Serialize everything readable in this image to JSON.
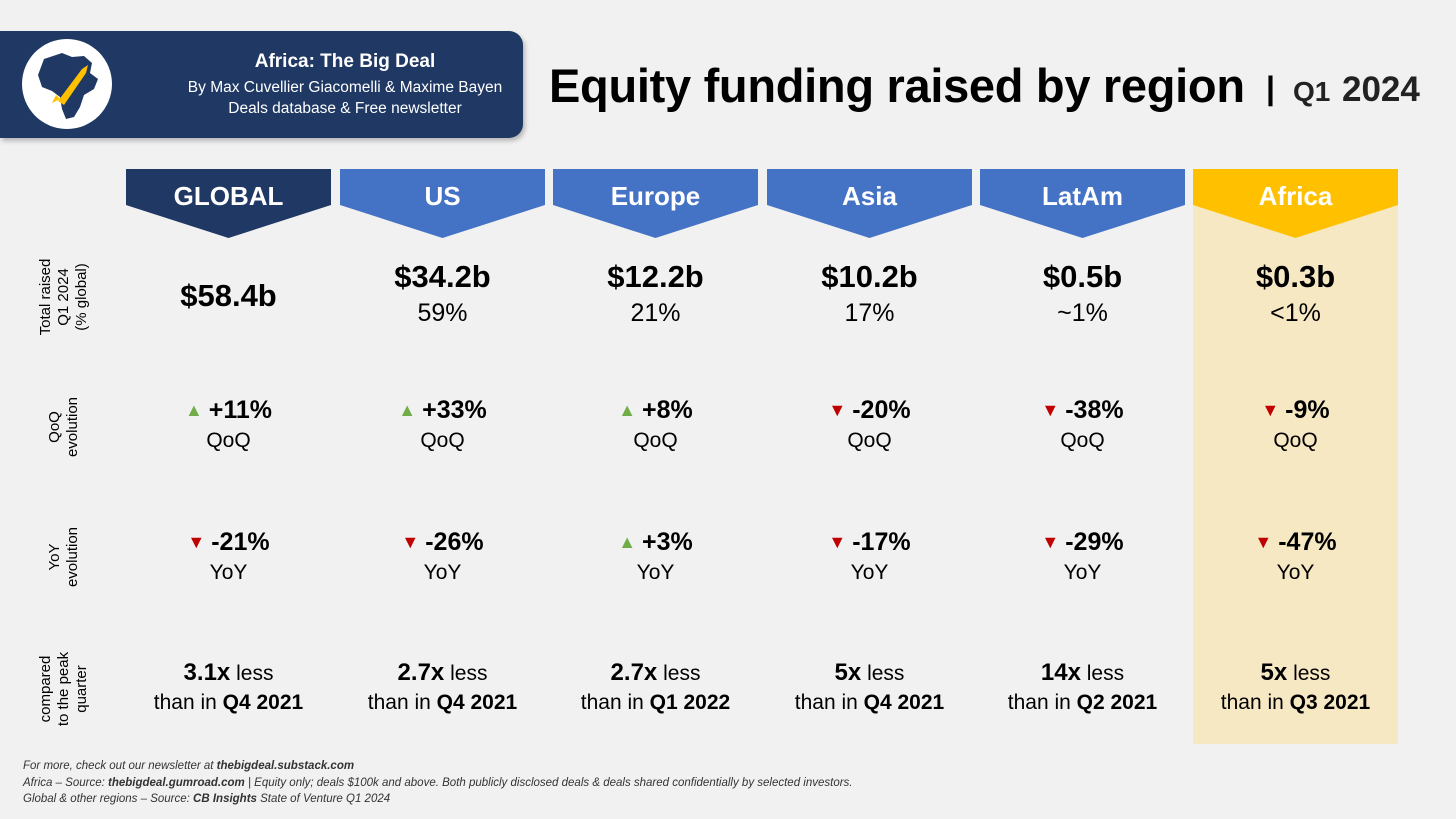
{
  "brand": {
    "title": "Africa: The Big Deal",
    "authors": "By Max Cuvellier Giacomelli & Maxime Bayen",
    "subtitle": "Deals database & Free newsletter",
    "logo_icon": "africa-rocket-icon"
  },
  "header": {
    "title": "Equity funding raised by region",
    "separator": "|",
    "quarter": "Q1",
    "year": "2024"
  },
  "row_labels": {
    "total": "Total raised Q1 2024 (% global)",
    "total_lines": [
      "Total raised",
      "Q1 2024",
      "(% global)"
    ],
    "qoq_lines": [
      "QoQ",
      "evolution"
    ],
    "yoy_lines": [
      "YoY",
      "evolution"
    ],
    "peak_lines": [
      "compared",
      "to the peak",
      "quarter"
    ]
  },
  "colors": {
    "global_header": "#1f3864",
    "region_header": "#4472c4",
    "africa_header": "#ffc000",
    "africa_background": "#f7e8c4",
    "up": "#70ad47",
    "down": "#c00000"
  },
  "regions": [
    {
      "name": "GLOBAL",
      "total": "$58.4b",
      "share": "",
      "qoq": "+11%",
      "qoq_dir": "up",
      "qoq_label": "QoQ",
      "yoy": "-21%",
      "yoy_dir": "down",
      "yoy_label": "YoY",
      "peak_multiple": "3.1x",
      "peak_word": "less",
      "peak_prefix": "than in",
      "peak_quarter": "Q4 2021"
    },
    {
      "name": "US",
      "total": "$34.2b",
      "share": "59%",
      "qoq": "+33%",
      "qoq_dir": "up",
      "qoq_label": "QoQ",
      "yoy": "-26%",
      "yoy_dir": "down",
      "yoy_label": "YoY",
      "peak_multiple": "2.7x",
      "peak_word": "less",
      "peak_prefix": "than in",
      "peak_quarter": "Q4 2021"
    },
    {
      "name": "Europe",
      "total": "$12.2b",
      "share": "21%",
      "qoq": "+8%",
      "qoq_dir": "up",
      "qoq_label": "QoQ",
      "yoy": "+3%",
      "yoy_dir": "up",
      "yoy_label": "YoY",
      "peak_multiple": "2.7x",
      "peak_word": "less",
      "peak_prefix": "than in",
      "peak_quarter": "Q1 2022"
    },
    {
      "name": "Asia",
      "total": "$10.2b",
      "share": "17%",
      "qoq": "-20%",
      "qoq_dir": "down",
      "qoq_label": "QoQ",
      "yoy": "-17%",
      "yoy_dir": "down",
      "yoy_label": "YoY",
      "peak_multiple": "5x",
      "peak_word": "less",
      "peak_prefix": "than in",
      "peak_quarter": "Q4 2021"
    },
    {
      "name": "LatAm",
      "total": "$0.5b",
      "share": "~1%",
      "qoq": "-38%",
      "qoq_dir": "down",
      "qoq_label": "QoQ",
      "yoy": "-29%",
      "yoy_dir": "down",
      "yoy_label": "YoY",
      "peak_multiple": "14x",
      "peak_word": "less",
      "peak_prefix": "than in",
      "peak_quarter": "Q2 2021"
    },
    {
      "name": "Africa",
      "total": "$0.3b",
      "share": "<1%",
      "qoq": "-9%",
      "qoq_dir": "down",
      "qoq_label": "QoQ",
      "yoy": "-47%",
      "yoy_dir": "down",
      "yoy_label": "YoY",
      "peak_multiple": "5x",
      "peak_word": "less",
      "peak_prefix": "than in",
      "peak_quarter": "Q3 2021"
    }
  ],
  "footer": {
    "line1_text": "For more, check out our newsletter at ",
    "line1_link": "thebigdeal.substack.com",
    "line2_prefix": "Africa – Source: ",
    "line2_link": "thebigdeal.gumroad.com",
    "line2_text": " | Equity only; deals $100k and above. Both publicly disclosed deals & deals shared confidentially by selected investors.",
    "line3_prefix": "Global & other regions – Source: ",
    "line3_source": "CB Insights",
    "line3_text": " State of Venture Q1 2024"
  },
  "chart_data": {
    "type": "table",
    "title": "Equity funding raised by region | Q1 2024",
    "columns": [
      "GLOBAL",
      "US",
      "Europe",
      "Asia",
      "LatAm",
      "Africa"
    ],
    "total_raised_billion_usd": [
      58.4,
      34.2,
      12.2,
      10.2,
      0.5,
      0.3
    ],
    "share_of_global": [
      "",
      "59%",
      "21%",
      "17%",
      "~1%",
      "<1%"
    ],
    "qoq_change_pct": [
      11,
      33,
      8,
      -20,
      -38,
      -9
    ],
    "yoy_change_pct": [
      -21,
      -26,
      3,
      -17,
      -29,
      -47
    ],
    "peak_multiple": [
      3.1,
      2.7,
      2.7,
      5,
      14,
      5
    ],
    "peak_quarter": [
      "Q4 2021",
      "Q4 2021",
      "Q1 2022",
      "Q4 2021",
      "Q2 2021",
      "Q3 2021"
    ]
  }
}
